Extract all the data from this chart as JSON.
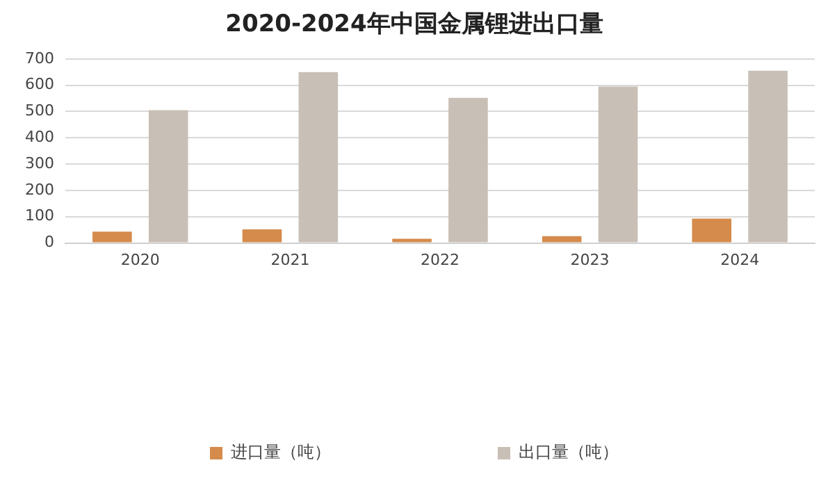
{
  "chart_data": {
    "type": "bar",
    "title": "2020-2024年中国金属锂进出口量",
    "categories": [
      "2020",
      "2021",
      "2022",
      "2023",
      "2024"
    ],
    "series": [
      {
        "name": "进口量（吨）",
        "color": "#d58b4c",
        "values": [
          43,
          52,
          16,
          26,
          93
        ]
      },
      {
        "name": "出口量（吨）",
        "color": "#c8bfb6",
        "values": [
          505,
          650,
          552,
          595,
          655
        ]
      }
    ],
    "ylim": [
      0,
      700
    ],
    "yticks": [
      0,
      100,
      200,
      300,
      400,
      500,
      600,
      700
    ],
    "grid": "y",
    "legend": "bottom"
  }
}
